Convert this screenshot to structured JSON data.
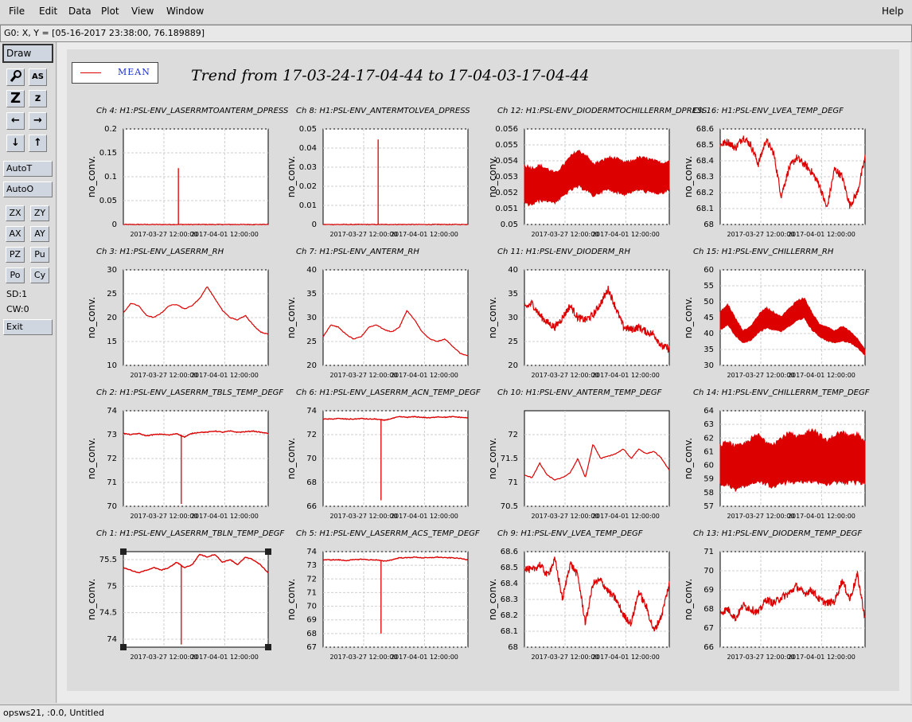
{
  "menu": {
    "file": "File",
    "edit": "Edit",
    "data": "Data",
    "plot": "Plot",
    "view": "View",
    "window": "Window",
    "help": "Help"
  },
  "coord_readout": "G0: X, Y = [05-16-2017 23:38:00, 76.189889]",
  "toolbar": {
    "draw": "Draw",
    "icons": [
      "magnify-icon",
      "auto-scale-icon",
      "zoom-in-icon",
      "zoom-out-icon",
      "pan-left-icon",
      "pan-right-icon",
      "pan-down-icon",
      "pan-up-icon"
    ],
    "icon_glyphs": [
      "🔍",
      "AS",
      "Z",
      "z",
      "←",
      "→",
      "↓",
      "↑"
    ],
    "auto_t": "AutoT",
    "auto_o": "AutoO",
    "small_buttons": [
      "ZX",
      "ZY",
      "AX",
      "AY",
      "PZ",
      "Pu",
      "Po",
      "Cy"
    ],
    "sd": "SD:1",
    "cw": "CW:0",
    "exit": "Exit"
  },
  "legend": {
    "label": "MEAN",
    "color": "#dd0000"
  },
  "main_title": "Trend from 17-03-24-17-04-44 to 17-04-03-17-04-44",
  "status": "opsws21, :0.0, Untitled",
  "chart_data": [
    {
      "type": "line",
      "title": "Ch 4: H1:PSL-ENV_LASERRMTOANTERM_DPRESS",
      "ylabel": "no_conv.",
      "ylim": [
        0,
        0.2
      ],
      "yticks": [
        "0",
        "0.05",
        "0.1",
        "0.15",
        "0.2"
      ],
      "xticks": [
        "2017-03-27 12:00:00",
        "2017-04-01 12:00:00"
      ],
      "style": "spike",
      "baseline": 0,
      "spike_pos": 0.38,
      "spike_value": 0.118,
      "series": [
        {
          "values": [
            0,
            0,
            0,
            0,
            0,
            0,
            0,
            0,
            0,
            0,
            0,
            0,
            0,
            0,
            0,
            0,
            0,
            0,
            0,
            0
          ]
        }
      ]
    },
    {
      "type": "line",
      "title": "Ch 8: H1:PSL-ENV_ANTERMTOLVEA_DPRESS",
      "ylabel": "no_conv.",
      "ylim": [
        0,
        0.05
      ],
      "yticks": [
        "0",
        "0.01",
        "0.02",
        "0.03",
        "0.04",
        "0.05"
      ],
      "xticks": [
        "2017-03-27 12:00:00",
        "2017-04-01 12:00:00"
      ],
      "style": "spike",
      "baseline": 0,
      "spike_pos": 0.38,
      "spike_value": 0.0445,
      "series": [
        {
          "values": [
            0,
            0,
            0,
            0,
            0,
            0,
            0,
            0,
            0,
            0,
            0,
            0,
            0,
            0,
            0,
            0,
            0,
            0,
            0,
            0
          ]
        }
      ]
    },
    {
      "type": "line",
      "title": "Ch 12: H1:PSL-ENV_DIODERMTOCHILLERRM_DPRESS",
      "ylabel": "no_conv.",
      "ylim": [
        0.05,
        0.056
      ],
      "yticks": [
        "0.05",
        "0.051",
        "0.052",
        "0.053",
        "0.054",
        "0.055",
        "0.056"
      ],
      "xticks": [
        "2017-03-27 12:00:00",
        "2017-04-01 12:00:00"
      ],
      "style": "band",
      "series": [
        {
          "values": [
            0.0525,
            0.0524,
            0.0526,
            0.0525,
            0.0523,
            0.0527,
            0.0532,
            0.0535,
            0.0533,
            0.0528,
            0.053,
            0.0532,
            0.0531,
            0.0529,
            0.053,
            0.0532,
            0.0531,
            0.053,
            0.0529,
            0.0531
          ]
        }
      ],
      "band": [
        0.0027,
        0.0025,
        0.0024,
        0.0022,
        0.002,
        0.0021,
        0.0023,
        0.0025,
        0.0024,
        0.0022,
        0.0021,
        0.0022,
        0.0023,
        0.0022,
        0.0021,
        0.0022,
        0.0023,
        0.0022,
        0.0021,
        0.002
      ]
    },
    {
      "type": "line",
      "title": "Ch 16: H1:PSL-ENV_LVEA_TEMP_DEGF",
      "ylabel": "no_conv.",
      "ylim": [
        68,
        68.6
      ],
      "yticks": [
        "68",
        "68.1",
        "68.2",
        "68.3",
        "68.4",
        "68.5",
        "68.6"
      ],
      "xticks": [
        "2017-03-27 12:00:00",
        "2017-04-01 12:00:00"
      ],
      "style": "noisy",
      "series": [
        {
          "values": [
            68.5,
            68.52,
            68.48,
            68.55,
            68.5,
            68.38,
            68.53,
            68.45,
            68.18,
            68.35,
            68.42,
            68.38,
            68.33,
            68.25,
            68.1,
            68.35,
            68.3,
            68.12,
            68.2,
            68.42
          ]
        }
      ]
    },
    {
      "type": "line",
      "title": "Ch 3: H1:PSL-ENV_LASERRM_RH",
      "ylabel": "no_conv.",
      "ylim": [
        10,
        30
      ],
      "yticks": [
        "10",
        "15",
        "20",
        "25",
        "30"
      ],
      "xticks": [
        "2017-03-27 12:00:00",
        "2017-04-01 12:00:00"
      ],
      "style": "line",
      "series": [
        {
          "values": [
            21,
            23,
            22.5,
            20.5,
            20,
            21,
            22.5,
            22.8,
            21.8,
            22.5,
            24,
            26.5,
            24,
            21.5,
            20,
            19.5,
            20.5,
            18.5,
            17,
            16.5
          ]
        }
      ]
    },
    {
      "type": "line",
      "title": "Ch 7: H1:PSL-ENV_ANTERM_RH",
      "ylabel": "no_conv.",
      "ylim": [
        20,
        40
      ],
      "yticks": [
        "20",
        "25",
        "30",
        "35",
        "40"
      ],
      "xticks": [
        "2017-03-27 12:00:00",
        "2017-04-01 12:00:00"
      ],
      "style": "line",
      "series": [
        {
          "values": [
            26,
            28.5,
            28,
            26.5,
            25.5,
            26,
            28,
            28.5,
            27.5,
            27,
            28,
            31.5,
            29.5,
            27,
            25.5,
            25,
            25.5,
            24,
            22.5,
            22
          ]
        }
      ]
    },
    {
      "type": "line",
      "title": "Ch 11: H1:PSL-ENV_DIODERM_RH",
      "ylabel": "no_conv.",
      "ylim": [
        20,
        40
      ],
      "yticks": [
        "20",
        "25",
        "30",
        "35",
        "40"
      ],
      "xticks": [
        "2017-03-27 12:00:00",
        "2017-04-01 12:00:00"
      ],
      "style": "noisy",
      "series": [
        {
          "values": [
            32,
            33,
            30.5,
            29,
            28,
            30,
            32.5,
            30,
            29.5,
            30.5,
            33,
            36,
            32,
            28,
            27.5,
            28,
            27,
            26.5,
            24,
            23.5
          ]
        }
      ]
    },
    {
      "type": "line",
      "title": "Ch 15: H1:PSL-ENV_CHILLERRM_RH",
      "ylabel": "no_conv.",
      "ylim": [
        30,
        60
      ],
      "yticks": [
        "30",
        "35",
        "40",
        "45",
        "50",
        "55",
        "60"
      ],
      "xticks": [
        "2017-03-27 12:00:00",
        "2017-04-01 12:00:00"
      ],
      "style": "band",
      "series": [
        {
          "values": [
            44,
            46,
            42,
            39,
            40,
            43,
            45,
            44,
            43,
            45,
            47,
            48,
            44,
            41,
            40,
            39,
            40,
            39,
            37,
            34
          ]
        }
      ],
      "band": [
        6,
        7,
        6,
        4,
        5,
        6,
        7,
        6,
        5,
        6,
        7,
        7,
        6,
        4,
        5,
        4,
        5,
        4,
        3,
        2
      ]
    },
    {
      "type": "line",
      "title": "Ch 2: H1:PSL-ENV_LASERRM_TBLS_TEMP_DEGF",
      "ylabel": "no_conv.",
      "ylim": [
        70,
        74
      ],
      "yticks": [
        "70",
        "71",
        "72",
        "73",
        "74"
      ],
      "xticks": [
        "2017-03-27 12:00:00",
        "2017-04-01 12:00:00"
      ],
      "style": "spike",
      "baseline": "series",
      "spike_pos": 0.4,
      "spike_value": 70.1,
      "series": [
        {
          "values": [
            73.05,
            73.0,
            73.05,
            72.95,
            73.0,
            73.02,
            72.98,
            73.05,
            72.9,
            73.05,
            73.1,
            73.1,
            73.15,
            73.1,
            73.15,
            73.1,
            73.12,
            73.15,
            73.1,
            73.05
          ]
        }
      ]
    },
    {
      "type": "line",
      "title": "Ch 6: H1:PSL-ENV_LASERRM_ACN_TEMP_DEGF",
      "ylabel": "no_conv.",
      "ylim": [
        66,
        74
      ],
      "yticks": [
        "66",
        "68",
        "70",
        "72",
        "74"
      ],
      "xticks": [
        "2017-03-27 12:00:00",
        "2017-04-01 12:00:00"
      ],
      "style": "spike",
      "baseline": "series",
      "spike_pos": 0.4,
      "spike_value": 66.5,
      "series": [
        {
          "values": [
            73.3,
            73.3,
            73.35,
            73.3,
            73.3,
            73.35,
            73.3,
            73.3,
            73.2,
            73.35,
            73.5,
            73.45,
            73.5,
            73.45,
            73.4,
            73.5,
            73.45,
            73.5,
            73.45,
            73.4
          ]
        }
      ]
    },
    {
      "type": "line",
      "title": "Ch 10: H1:PSL-ENV_ANTERM_TEMP_DEGF",
      "ylabel": "no_conv.",
      "ylim": [
        70.5,
        72.5
      ],
      "yticks": [
        "70.5",
        "71",
        "71.5",
        "72"
      ],
      "xticks": [
        "2017-03-27 12:00:00",
        "2017-04-01 12:00:00"
      ],
      "style": "line",
      "series": [
        {
          "values": [
            71.15,
            71.1,
            71.4,
            71.15,
            71.05,
            71.1,
            71.2,
            71.5,
            71.1,
            71.8,
            71.5,
            71.55,
            71.6,
            71.7,
            71.5,
            71.7,
            71.6,
            71.65,
            71.5,
            71.25
          ]
        }
      ]
    },
    {
      "type": "line",
      "title": "Ch 14: H1:PSL-ENV_CHILLERRM_TEMP_DEGF",
      "ylabel": "no_conv.",
      "ylim": [
        57,
        64
      ],
      "yticks": [
        "57",
        "58",
        "59",
        "60",
        "61",
        "62",
        "63",
        "64"
      ],
      "xticks": [
        "2017-03-27 12:00:00",
        "2017-04-01 12:00:00"
      ],
      "style": "band",
      "series": [
        {
          "values": [
            60,
            60.2,
            59.8,
            60,
            60.3,
            60.5,
            60.2,
            60,
            60.3,
            60.6,
            60.4,
            60.5,
            60.8,
            60.5,
            60.2,
            60.5,
            60.6,
            60.4,
            60.5,
            60.3
          ]
        }
      ],
      "band": [
        3.2,
        3.4,
        3.5,
        3.3,
        3.6,
        3.8,
        3.4,
        3.5,
        3.7,
        3.9,
        3.6,
        3.8,
        4.2,
        3.9,
        3.4,
        3.8,
        4.0,
        3.7,
        3.9,
        3.5
      ]
    },
    {
      "type": "line",
      "title": "Ch 1: H1:PSL-ENV_LASERRM_TBLN_TEMP_DEGF",
      "ylabel": "no_conv.",
      "ylim": [
        73.85,
        75.65
      ],
      "yticks": [
        "74",
        "74.5",
        "75",
        "75.5"
      ],
      "xticks": [
        "2017-03-27 12:00:00",
        "2017-04-01 12:00:00"
      ],
      "style": "spike",
      "baseline": "series",
      "spike_pos": 0.4,
      "spike_value": 73.9,
      "series": [
        {
          "values": [
            75.35,
            75.3,
            75.25,
            75.3,
            75.35,
            75.3,
            75.35,
            75.45,
            75.35,
            75.4,
            75.6,
            75.55,
            75.6,
            75.45,
            75.5,
            75.4,
            75.55,
            75.5,
            75.4,
            75.25
          ]
        }
      ]
    },
    {
      "type": "line",
      "title": "Ch 5: H1:PSL-ENV_LASERRM_ACS_TEMP_DEGF",
      "ylabel": "no_conv.",
      "ylim": [
        67,
        74
      ],
      "yticks": [
        "67",
        "68",
        "69",
        "70",
        "71",
        "72",
        "73",
        "74"
      ],
      "xticks": [
        "2017-03-27 12:00:00",
        "2017-04-01 12:00:00"
      ],
      "style": "spike",
      "baseline": "series",
      "spike_pos": 0.4,
      "spike_value": 68,
      "series": [
        {
          "values": [
            73.4,
            73.4,
            73.4,
            73.35,
            73.4,
            73.45,
            73.4,
            73.4,
            73.3,
            73.4,
            73.55,
            73.55,
            73.6,
            73.55,
            73.55,
            73.6,
            73.55,
            73.55,
            73.5,
            73.4
          ]
        }
      ]
    },
    {
      "type": "line",
      "title": "Ch 9: H1:PSL-ENV_LVEA_TEMP_DEGF",
      "ylabel": "no_conv.",
      "ylim": [
        68,
        68.6
      ],
      "yticks": [
        "68",
        "68.1",
        "68.2",
        "68.3",
        "68.4",
        "68.5",
        "68.6"
      ],
      "xticks": [
        "2017-03-27 12:00:00",
        "2017-04-01 12:00:00"
      ],
      "style": "noisy",
      "series": [
        {
          "values": [
            68.5,
            68.48,
            68.52,
            68.45,
            68.55,
            68.3,
            68.53,
            68.45,
            68.15,
            68.4,
            68.42,
            68.35,
            68.3,
            68.2,
            68.15,
            68.35,
            68.25,
            68.1,
            68.2,
            68.4
          ]
        }
      ]
    },
    {
      "type": "line",
      "title": "Ch 13: H1:PSL-ENV_DIODERM_TEMP_DEGF",
      "ylabel": "no_conv.",
      "ylim": [
        66,
        71
      ],
      "yticks": [
        "66",
        "67",
        "68",
        "69",
        "70",
        "71"
      ],
      "xticks": [
        "2017-03-27 12:00:00",
        "2017-04-01 12:00:00"
      ],
      "style": "noisy",
      "series": [
        {
          "values": [
            67.8,
            68,
            67.5,
            68.2,
            68,
            67.8,
            68.5,
            68.3,
            68.6,
            68.8,
            69.2,
            68.8,
            69,
            68.5,
            68.3,
            68.4,
            69.5,
            68.5,
            69.8,
            67.5
          ]
        }
      ]
    }
  ]
}
